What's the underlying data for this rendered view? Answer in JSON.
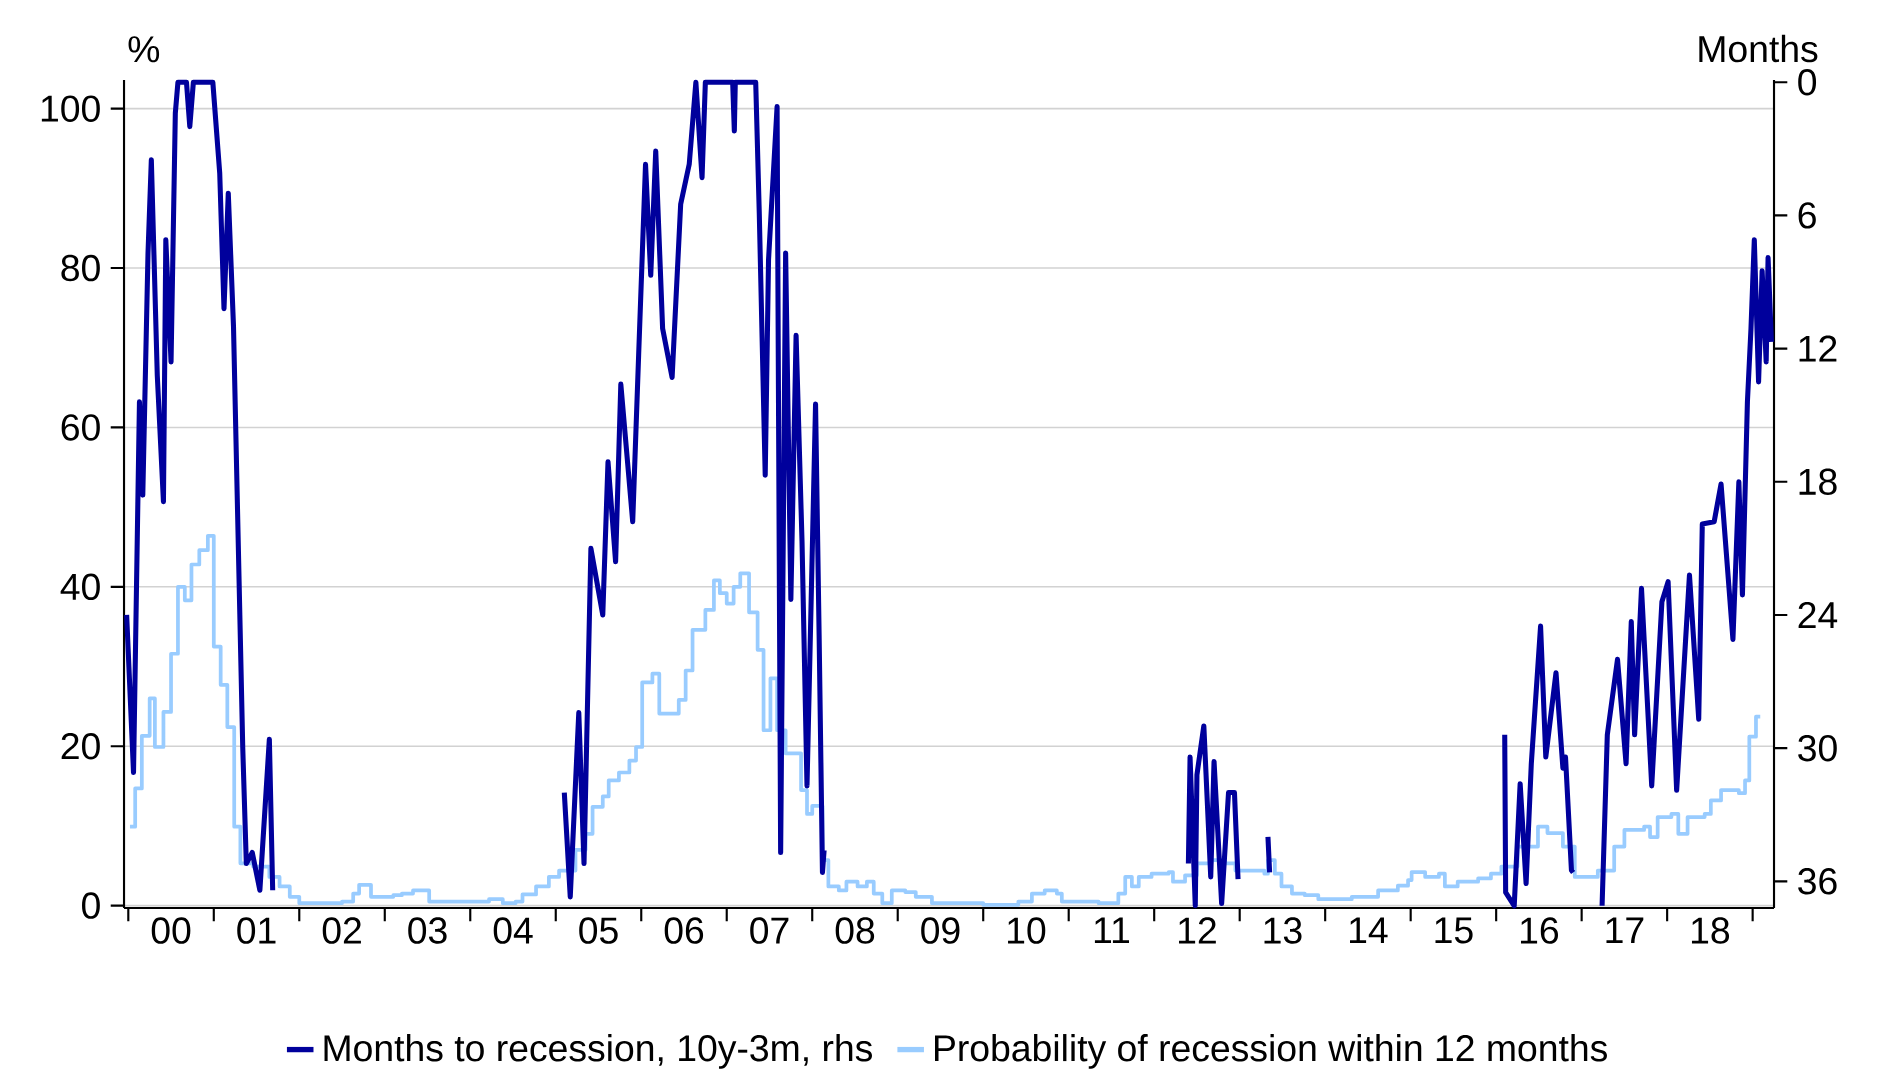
{
  "chart_data": {
    "type": "line",
    "ylabel": "%",
    "y2label": "Months",
    "xlim": [
      "1999-12-13",
      "2019-04-01"
    ],
    "xticks": [
      {
        "value": "2000-01-01",
        "label": null
      },
      {
        "value": "2001-01-01",
        "label": null
      },
      {
        "value": "2002-01-01",
        "label": null
      },
      {
        "value": "2003-01-01",
        "label": null
      },
      {
        "value": "2004-01-01",
        "label": null
      },
      {
        "value": "2005-01-01",
        "label": null
      },
      {
        "value": "2006-01-01",
        "label": null
      },
      {
        "value": "2007-01-01",
        "label": null
      },
      {
        "value": "2008-01-01",
        "label": null
      },
      {
        "value": "2009-01-01",
        "label": null
      },
      {
        "value": "2010-01-01",
        "label": null
      },
      {
        "value": "2011-01-01",
        "label": null
      },
      {
        "value": "2012-01-01",
        "label": null
      },
      {
        "value": "2013-01-01",
        "label": null
      },
      {
        "value": "2014-01-01",
        "label": null
      },
      {
        "value": "2015-01-01",
        "label": null
      },
      {
        "value": "2016-01-01",
        "label": null
      },
      {
        "value": "2017-01-01",
        "label": null
      },
      {
        "value": "2018-01-01",
        "label": null
      },
      {
        "value": "2019-01-01",
        "label": null
      },
      {
        "value": "2000-07-01",
        "label": "00"
      },
      {
        "value": "2001-07-01",
        "label": "01"
      },
      {
        "value": "2002-07-01",
        "label": "02"
      },
      {
        "value": "2003-07-01",
        "label": "03"
      },
      {
        "value": "2004-07-01",
        "label": "04"
      },
      {
        "value": "2005-07-01",
        "label": "05"
      },
      {
        "value": "2006-07-01",
        "label": "06"
      },
      {
        "value": "2007-07-01",
        "label": "07"
      },
      {
        "value": "2008-07-01",
        "label": "08"
      },
      {
        "value": "2009-07-01",
        "label": "09"
      },
      {
        "value": "2010-07-01",
        "label": "10"
      },
      {
        "value": "2011-07-01",
        "label": "11"
      },
      {
        "value": "2012-07-01",
        "label": "12"
      },
      {
        "value": "2013-07-01",
        "label": "13"
      },
      {
        "value": "2014-07-01",
        "label": "14"
      },
      {
        "value": "2015-07-01",
        "label": "15"
      },
      {
        "value": "2016-07-01",
        "label": "16"
      },
      {
        "value": "2017-07-01",
        "label": "17"
      },
      {
        "value": "2018-07-01",
        "label": "18"
      }
    ],
    "ylim": [
      -0.3,
      103.6
    ],
    "yticks": [
      0,
      20,
      40,
      60,
      80,
      100
    ],
    "y2lim": [
      37.2,
      -0.1
    ],
    "y2ticks": [
      0,
      6,
      12,
      18,
      24,
      30,
      36
    ],
    "grid": "y",
    "legend": "bottom",
    "line_style": "solid",
    "marker": "none",
    "series": [
      {
        "name": "Months to recession, 10y-3m, rhs",
        "color": "#00009c",
        "axis": "y2",
        "x": [
          "1999-12-24",
          "2000-01-23",
          "2000-02-18",
          "2000-03-02",
          "2000-03-24",
          "2000-04-08",
          "2000-05-03",
          "2000-05-29",
          "2000-06-09",
          "2000-07-01",
          "2000-07-19",
          "2000-07-30",
          "2000-09-06",
          "2000-09-20",
          "2000-10-05",
          "2000-12-27",
          "2001-01-26",
          "2001-02-14",
          "2001-03-02",
          "2001-03-24",
          "2001-05-03",
          "2001-05-18",
          "2001-06-13",
          "2001-07-15",
          "2001-08-25",
          "2001-09-09",
          "2003-01-01",
          "2005-02-07",
          "2005-03-02",
          "2005-04-08",
          "2005-04-30",
          "2005-05-29",
          "2005-07-19",
          "2005-08-11",
          "2005-09-13",
          "2005-10-05",
          "2005-11-25",
          "2005-12-20",
          "2006-01-19",
          "2006-02-11",
          "2006-03-02",
          "2006-04-01",
          "2006-05-11",
          "2006-06-17",
          "2006-07-23",
          "2006-08-21",
          "2006-09-17",
          "2006-10-01",
          "2007-01-26",
          "2007-02-03",
          "2007-02-07",
          "2007-05-03",
          "2007-05-18",
          "2007-06-13",
          "2007-06-27",
          "2007-08-03",
          "2007-08-18",
          "2007-09-09",
          "2007-10-01",
          "2007-10-23",
          "2007-11-18",
          "2007-12-09",
          "2008-01-15",
          "2008-01-30",
          "2008-02-14",
          "2008-02-21",
          "2010-01-01",
          "2012-05-25",
          "2012-06-02",
          "2012-06-24",
          "2012-07-01",
          "2012-07-30",
          "2012-08-29",
          "2012-09-13",
          "2012-10-15",
          "2012-11-14",
          "2012-12-09",
          "2012-12-24",
          "2013-02-07",
          "2013-04-30",
          "2013-05-07",
          "2014-07-01",
          "2016-02-07",
          "2016-02-11",
          "2016-03-17",
          "2016-04-12",
          "2016-05-07",
          "2016-05-29",
          "2016-07-08",
          "2016-07-30",
          "2016-09-13",
          "2016-10-12",
          "2016-10-23",
          "2016-11-18",
          "2016-11-25",
          "2017-01-19",
          "2017-03-27",
          "2017-04-19",
          "2017-06-02",
          "2017-07-08",
          "2017-07-30",
          "2017-08-14",
          "2017-09-13",
          "2017-10-26",
          "2017-12-09",
          "2018-01-05",
          "2018-02-11",
          "2018-04-05",
          "2018-05-14",
          "2018-05-29",
          "2018-07-19",
          "2018-08-18",
          "2018-10-08",
          "2018-11-03",
          "2018-11-18",
          "2018-12-09",
          "2018-12-24",
          "2019-01-08",
          "2019-01-26",
          "2019-02-11",
          "2019-02-28",
          "2019-03-06",
          "2019-03-20"
        ],
        "values": [
          24.0,
          31.1,
          14.4,
          18.6,
          7.7,
          3.5,
          13.2,
          18.9,
          7.1,
          12.6,
          1.4,
          0,
          0,
          2.0,
          0,
          0,
          4.1,
          10.2,
          5.0,
          11.0,
          30.0,
          35.2,
          34.7,
          36.4,
          29.6,
          36.4,
          null,
          32.0,
          36.7,
          28.4,
          35.2,
          21.0,
          24.0,
          17.1,
          21.6,
          13.6,
          19.8,
          12.3,
          3.7,
          8.7,
          3.1,
          11.1,
          13.3,
          5.5,
          3.7,
          0,
          4.3,
          0,
          0,
          2.2,
          0,
          0,
          5.9,
          17.7,
          8.0,
          1.1,
          34.7,
          7.7,
          23.3,
          11.4,
          20.7,
          31.7,
          14.5,
          24.9,
          35.6,
          34.6,
          null,
          35.2,
          30.4,
          37.1,
          31.2,
          29.0,
          35.8,
          30.6,
          37.0,
          32.0,
          32.0,
          35.9,
          null,
          34.0,
          35.6,
          null,
          29.4,
          36.5,
          37.1,
          31.6,
          36.1,
          30.7,
          24.5,
          30.4,
          26.6,
          30.9,
          30.4,
          35.5,
          35.6,
          null,
          37.1,
          29.4,
          26.0,
          30.7,
          24.3,
          29.4,
          22.8,
          31.7,
          23.4,
          22.5,
          31.9,
          22.2,
          28.7,
          19.9,
          19.8,
          18.1,
          25.1,
          18.0,
          23.1,
          14.4,
          11.1,
          7.1,
          13.5,
          8.5,
          12.6,
          7.9,
          11.7
        ]
      },
      {
        "name": "Probability of recession within 12 months",
        "color": "#99ccff",
        "type": "step",
        "x": [
          "2000-01-08",
          "2000-01-30",
          "2000-02-28",
          "2000-04-01",
          "2000-04-23",
          "2000-05-29",
          "2000-07-01",
          "2000-07-30",
          "2000-08-29",
          "2000-09-27",
          "2000-10-30",
          "2000-12-06",
          "2001-01-01",
          "2001-01-30",
          "2001-02-28",
          "2001-03-27",
          "2001-04-23",
          "2001-06-17",
          "2001-08-25",
          "2001-10-08",
          "2001-11-21",
          "2002-01-01",
          "2002-07-01",
          "2002-08-18",
          "2002-09-13",
          "2002-11-03",
          "2003-02-07",
          "2003-03-13",
          "2003-04-30",
          "2003-07-08",
          "2004-03-20",
          "2004-05-18",
          "2004-07-12",
          "2004-08-11",
          "2004-10-08",
          "2004-12-02",
          "2005-01-15",
          "2005-03-24",
          "2005-05-07",
          "2005-06-06",
          "2005-07-19",
          "2005-08-14",
          "2005-09-27",
          "2005-11-11",
          "2005-12-09",
          "2006-01-05",
          "2006-02-18",
          "2006-03-17",
          "2006-06-09",
          "2006-07-08",
          "2006-08-07",
          "2006-10-01",
          "2006-11-07",
          "2006-12-02",
          "2007-01-01",
          "2007-01-30",
          "2007-02-28",
          "2007-04-05",
          "2007-05-11",
          "2007-06-06",
          "2007-07-05",
          "2007-08-03",
          "2007-09-09",
          "2007-11-14",
          "2007-12-09",
          "2008-01-01",
          "2008-02-14",
          "2008-03-09",
          "2008-04-23",
          "2008-05-25",
          "2008-07-12",
          "2008-08-21",
          "2008-09-20",
          "2008-10-26",
          "2008-12-06",
          "2009-02-03",
          "2009-03-17",
          "2009-05-25",
          "2010-01-01",
          "2010-05-29",
          "2010-07-26",
          "2010-09-20",
          "2010-11-11",
          "2010-12-02",
          "2011-05-07",
          "2011-07-30",
          "2011-08-29",
          "2011-09-27",
          "2011-10-26",
          "2011-12-20",
          "2012-03-02",
          "2012-03-20",
          "2012-05-11",
          "2012-07-01",
          "2012-09-02",
          "2012-10-30",
          "2012-12-13",
          "2013-04-15",
          "2013-04-30",
          "2013-05-29",
          "2013-06-27",
          "2013-08-11",
          "2013-10-05",
          "2013-12-02",
          "2014-04-23",
          "2014-08-14",
          "2014-11-07",
          "2014-12-20",
          "2015-01-05",
          "2015-03-02",
          "2015-04-30",
          "2015-05-25",
          "2015-07-19",
          "2015-10-15",
          "2015-12-09",
          "2016-01-23",
          "2016-04-01",
          "2016-06-27",
          "2016-08-07",
          "2016-10-12",
          "2016-12-02",
          "2017-03-09",
          "2017-05-18",
          "2017-07-01",
          "2017-09-24",
          "2017-10-19",
          "2017-11-21",
          "2018-01-19",
          "2018-02-18",
          "2018-03-27",
          "2018-06-09",
          "2018-07-05",
          "2018-08-18",
          "2018-11-03",
          "2018-11-29",
          "2018-12-17",
          "2019-01-15",
          "2019-02-03"
        ],
        "values": [
          9.9,
          14.7,
          21.3,
          26,
          19.9,
          24.3,
          31.6,
          40,
          38.3,
          42.8,
          44.6,
          46.4,
          32.5,
          27.7,
          22.4,
          9.9,
          5.3,
          4.9,
          3.6,
          2.4,
          1.1,
          0.3,
          0.5,
          1.5,
          2.6,
          1.1,
          1.3,
          1.5,
          1.9,
          0.5,
          0.8,
          0.3,
          0.5,
          1.4,
          2.4,
          3.6,
          4.4,
          7,
          9,
          12.4,
          13.7,
          15.7,
          16.7,
          18.2,
          19.9,
          28,
          29.1,
          24.1,
          25.8,
          29.5,
          34.6,
          37.1,
          40.8,
          39.2,
          37.9,
          40,
          41.7,
          36.8,
          32.1,
          22,
          28.5,
          22,
          19.1,
          14.5,
          11.5,
          12.5,
          5.7,
          2.4,
          1.9,
          3.0,
          2.4,
          3.0,
          1.5,
          0.3,
          1.9,
          1.7,
          1.1,
          0.3,
          0.1,
          0.5,
          1.5,
          1.9,
          1.5,
          0.5,
          0.3,
          1.5,
          3.6,
          2.4,
          3.6,
          4.0,
          4.2,
          3.0,
          3.8,
          5.3,
          5.7,
          5.3,
          4.4,
          4.0,
          5.7,
          4.0,
          2.4,
          1.5,
          1.3,
          0.8,
          1.1,
          1.9,
          2.5,
          3.2,
          4.2,
          3.6,
          4.0,
          2.4,
          3.0,
          3.4,
          4.0,
          4.9,
          7.4,
          9.9,
          9.1,
          7.4,
          3.6,
          4.4,
          7.4,
          9.5,
          9.9,
          8.6,
          11.1,
          11.5,
          9.0,
          11.1,
          11.5,
          13.2,
          14.5,
          14.1,
          15.7,
          21.2,
          23.7,
          23.7
        ]
      }
    ]
  }
}
